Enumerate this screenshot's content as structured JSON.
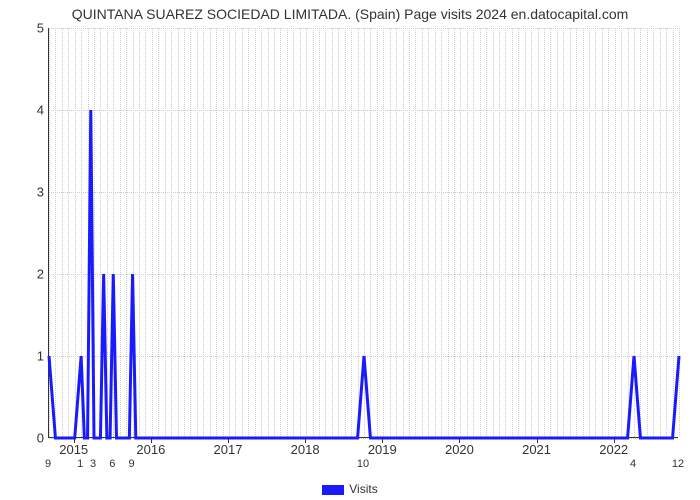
{
  "title": "QUINTANA SUAREZ SOCIEDAD LIMITADA. (Spain) Page visits 2024 en.datocapital.com",
  "chart": {
    "type": "line",
    "series_name": "Visits",
    "line_color": "#1a1aff",
    "line_width": 3,
    "background_color": "#ffffff",
    "grid_color": "#cccccc",
    "axis_color": "#333333",
    "title_fontsize": 14,
    "tick_fontsize": 13,
    "minor_tick_fontsize": 11,
    "y": {
      "min": 0,
      "max": 5,
      "ticks": [
        0,
        1,
        2,
        3,
        4,
        5
      ]
    },
    "x": {
      "min": 0,
      "max": 98,
      "major_ticks": [
        {
          "pos": 4,
          "label": "2015"
        },
        {
          "pos": 16,
          "label": "2016"
        },
        {
          "pos": 28,
          "label": "2017"
        },
        {
          "pos": 40,
          "label": "2018"
        },
        {
          "pos": 52,
          "label": "2019"
        },
        {
          "pos": 64,
          "label": "2020"
        },
        {
          "pos": 76,
          "label": "2021"
        },
        {
          "pos": 88,
          "label": "2022"
        }
      ],
      "minor_ticks": [
        {
          "pos": 0,
          "label": "9"
        },
        {
          "pos": 5,
          "label": "1"
        },
        {
          "pos": 7,
          "label": "3"
        },
        {
          "pos": 10,
          "label": "6"
        },
        {
          "pos": 13,
          "label": "9"
        },
        {
          "pos": 49,
          "label": "10"
        },
        {
          "pos": 91,
          "label": "4"
        },
        {
          "pos": 98,
          "label": "12"
        }
      ]
    },
    "data": [
      {
        "x": 0,
        "y": 1
      },
      {
        "x": 1,
        "y": 0
      },
      {
        "x": 4,
        "y": 0
      },
      {
        "x": 5,
        "y": 1
      },
      {
        "x": 5.5,
        "y": 0
      },
      {
        "x": 6,
        "y": 0
      },
      {
        "x": 6.5,
        "y": 4
      },
      {
        "x": 7,
        "y": 0
      },
      {
        "x": 8,
        "y": 0
      },
      {
        "x": 8.5,
        "y": 2
      },
      {
        "x": 9,
        "y": 0
      },
      {
        "x": 9.5,
        "y": 0
      },
      {
        "x": 10,
        "y": 2
      },
      {
        "x": 10.5,
        "y": 0
      },
      {
        "x": 12.5,
        "y": 0
      },
      {
        "x": 13,
        "y": 2
      },
      {
        "x": 13.5,
        "y": 0
      },
      {
        "x": 48,
        "y": 0
      },
      {
        "x": 49,
        "y": 1
      },
      {
        "x": 50,
        "y": 0
      },
      {
        "x": 90,
        "y": 0
      },
      {
        "x": 91,
        "y": 1
      },
      {
        "x": 92,
        "y": 0
      },
      {
        "x": 97,
        "y": 0
      },
      {
        "x": 98,
        "y": 1
      }
    ]
  },
  "legend": {
    "label": "Visits"
  }
}
